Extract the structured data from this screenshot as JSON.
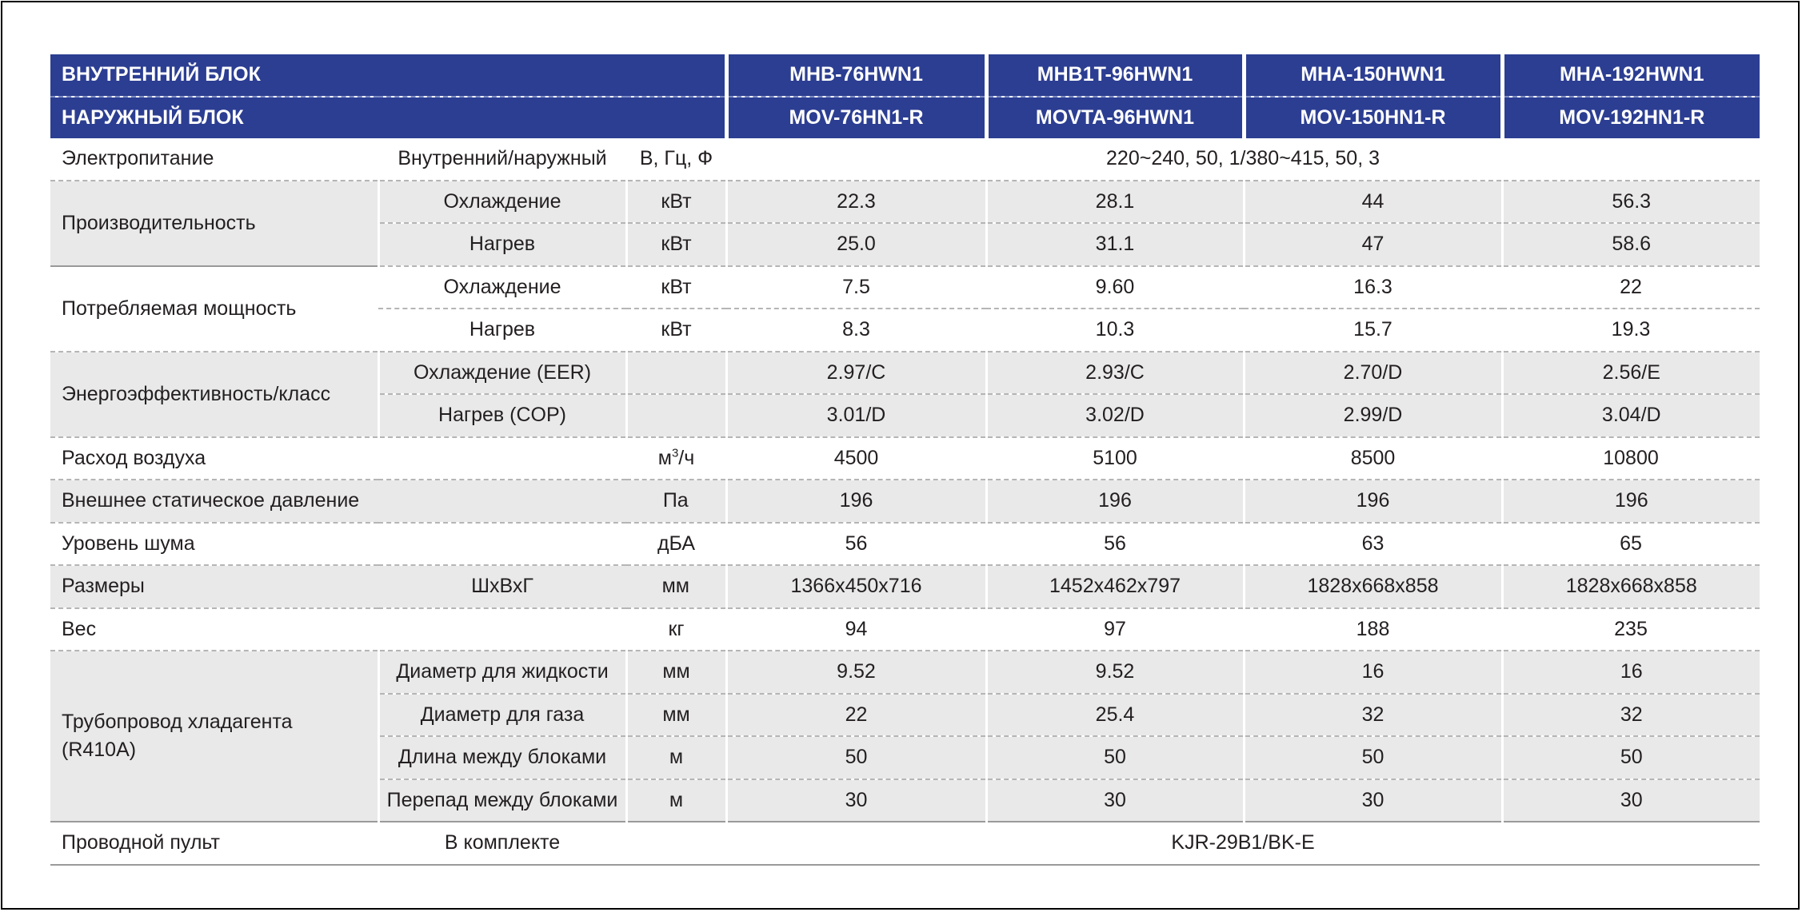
{
  "header": {
    "indoor_label": "ВНУТРЕННИЙ БЛОК",
    "outdoor_label": "НАРУЖНЫЙ БЛОК",
    "indoor_models": [
      "MHB-76HWN1",
      "MHB1T-96HWN1",
      "MHA-150HWN1",
      "MHA-192HWN1"
    ],
    "outdoor_models": [
      "MOV-76HN1-R",
      "MOVTA-96HWN1",
      "MOV-150HN1-R",
      "MOV-192HN1-R"
    ]
  },
  "power": {
    "label": "Электропитание",
    "sub": "Внутренний/наружный",
    "unit": "В, Гц, Ф",
    "value": "220~240, 50, 1/380~415, 50, 3"
  },
  "capacity": {
    "label": "Производительность",
    "cooling": {
      "sub": "Охлаждение",
      "unit": "кВт",
      "values": [
        "22.3",
        "28.1",
        "44",
        "56.3"
      ]
    },
    "heating": {
      "sub": "Нагрев",
      "unit": "кВт",
      "values": [
        "25.0",
        "31.1",
        "47",
        "58.6"
      ]
    }
  },
  "consumption": {
    "label": "Потребляемая мощность",
    "cooling": {
      "sub": "Охлаждение",
      "unit": "кВт",
      "values": [
        "7.5",
        "9.60",
        "16.3",
        "22"
      ]
    },
    "heating": {
      "sub": "Нагрев",
      "unit": "кВт",
      "values": [
        "8.3",
        "10.3",
        "15.7",
        "19.3"
      ]
    }
  },
  "efficiency": {
    "label": "Энергоэффективность/класс",
    "cooling": {
      "sub": "Охлаждение (EER)",
      "values": [
        "2.97/C",
        "2.93/C",
        "2.70/D",
        "2.56/E"
      ]
    },
    "heating": {
      "sub": "Нагрев (COP)",
      "values": [
        "3.01/D",
        "3.02/D",
        "2.99/D",
        "3.04/D"
      ]
    }
  },
  "airflow": {
    "label": "Расход воздуха",
    "unit_base": "м",
    "unit_sup": "3",
    "unit_tail": "/ч",
    "values": [
      "4500",
      "5100",
      "8500",
      "10800"
    ]
  },
  "pressure": {
    "label": "Внешнее статическое давление",
    "unit": "Па",
    "values": [
      "196",
      "196",
      "196",
      "196"
    ]
  },
  "noise": {
    "label": "Уровень шума",
    "unit": "дБА",
    "values": [
      "56",
      "56",
      "63",
      "65"
    ]
  },
  "dimensions": {
    "label": "Размеры",
    "sub": "ШхВхГ",
    "unit": "мм",
    "values": [
      "1366x450x716",
      "1452x462x797",
      "1828x668x858",
      "1828x668x858"
    ]
  },
  "weight": {
    "label": "Вес",
    "unit": "кг",
    "values": [
      "94",
      "97",
      "188",
      "235"
    ]
  },
  "piping": {
    "label_line1": "Трубопровод хладагента",
    "label_line2": "(R410A)",
    "liquid": {
      "sub": "Диаметр для жидкости",
      "unit": "мм",
      "values": [
        "9.52",
        "9.52",
        "16",
        "16"
      ]
    },
    "gas": {
      "sub": "Диаметр для газа",
      "unit": "мм",
      "values": [
        "22",
        "25.4",
        "32",
        "32"
      ]
    },
    "length": {
      "sub": "Длина между блоками",
      "unit": "м",
      "values": [
        "50",
        "50",
        "50",
        "50"
      ]
    },
    "height": {
      "sub": "Перепад между блоками",
      "unit": "м",
      "values": [
        "30",
        "30",
        "30",
        "30"
      ]
    }
  },
  "remote": {
    "label": "Проводной пульт",
    "sub": "В комплекте",
    "value": "KJR-29B1/BK-E"
  }
}
